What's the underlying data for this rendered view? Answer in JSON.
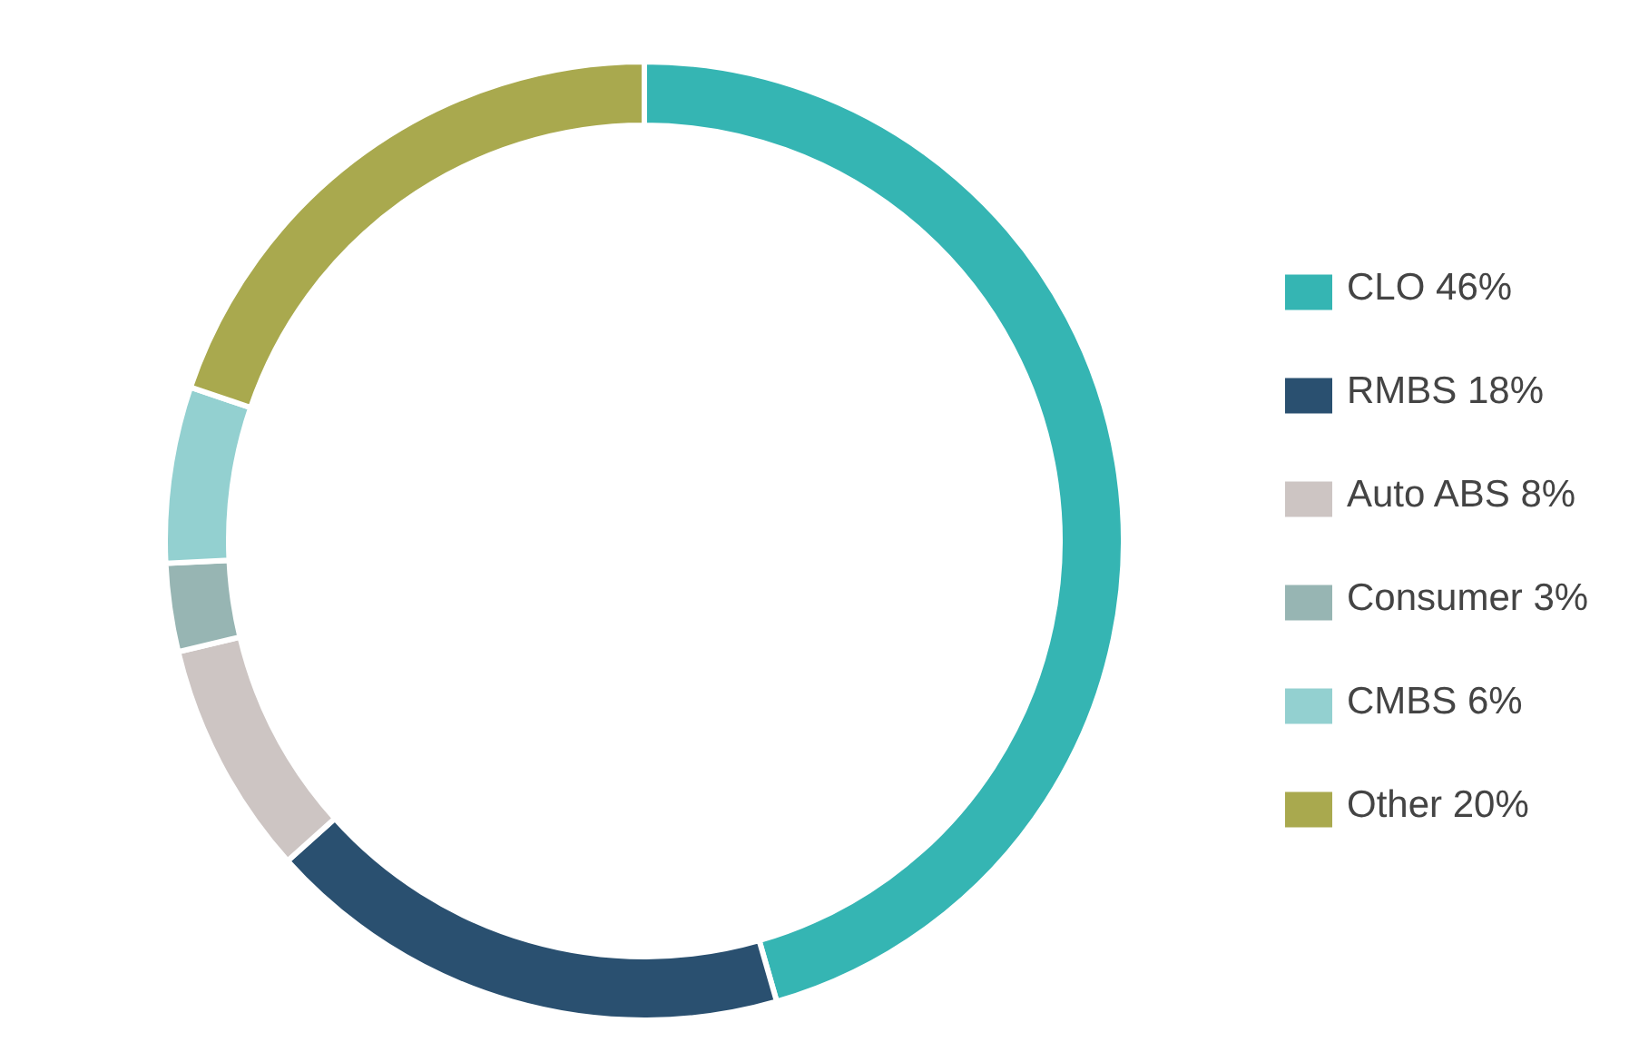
{
  "chart_data": {
    "type": "donut",
    "categories": [
      "CLO 46%",
      "RMBS 18%",
      "Auto ABS 8%",
      "Consumer 3%",
      "CMBS 6%",
      "Other 20%"
    ],
    "values": [
      46,
      18,
      8,
      3,
      6,
      20
    ],
    "colors": [
      "#35b5b3",
      "#2a5070",
      "#cdc5c3",
      "#97b5b3",
      "#93d0d0",
      "#a9a94e"
    ],
    "legend": "right"
  }
}
